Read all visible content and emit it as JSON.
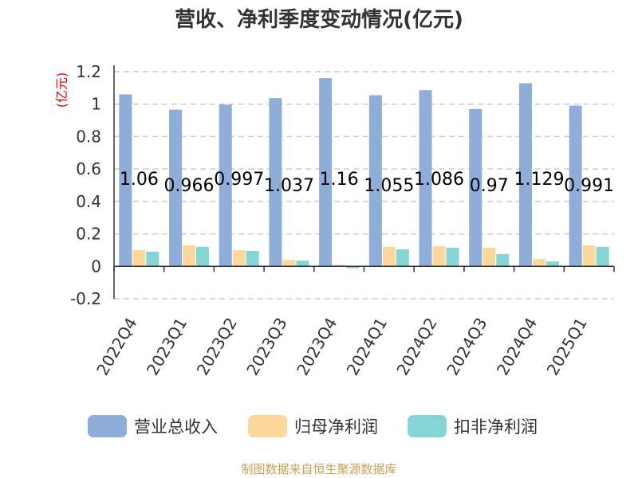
{
  "chart_data": {
    "type": "bar",
    "title": "营收、净利季度变动情况(亿元)",
    "ylabel": "(亿元)",
    "xlabel": "",
    "ylim": [
      -0.2,
      1.2
    ],
    "yticks": [
      -0.2,
      0,
      0.2,
      0.4,
      0.6,
      0.8,
      1,
      1.2
    ],
    "ytick_labels": [
      "-0.2",
      "0",
      "0.2",
      "0.4",
      "0.6",
      "0.8",
      "1",
      "1.2"
    ],
    "grid": true,
    "legend_position": "bottom",
    "categories": [
      "2022Q4",
      "2023Q1",
      "2023Q2",
      "2023Q3",
      "2023Q4",
      "2024Q1",
      "2024Q2",
      "2024Q3",
      "2024Q4",
      "2025Q1"
    ],
    "series": [
      {
        "name": "营业总收入",
        "color": "#8eadd9",
        "values": [
          1.06,
          0.966,
          0.997,
          1.037,
          1.16,
          1.055,
          1.086,
          0.97,
          1.129,
          0.991
        ]
      },
      {
        "name": "归母净利润",
        "color": "#fdd89b",
        "values": [
          0.1,
          0.13,
          0.1,
          0.04,
          0.01,
          0.12,
          0.125,
          0.115,
          0.045,
          0.13
        ]
      },
      {
        "name": "扣非净利润",
        "color": "#86d5d6",
        "values": [
          0.09,
          0.12,
          0.095,
          0.035,
          -0.012,
          0.105,
          0.115,
          0.075,
          0.03,
          0.12
        ]
      }
    ],
    "data_labels": [
      "1.06",
      "0.966",
      "0.997",
      "1.037",
      "1.16",
      "1.055",
      "1.086",
      "0.97",
      "1.129",
      "0.991"
    ]
  },
  "footer": {
    "source": "制图数据来自恒生聚源数据库"
  }
}
